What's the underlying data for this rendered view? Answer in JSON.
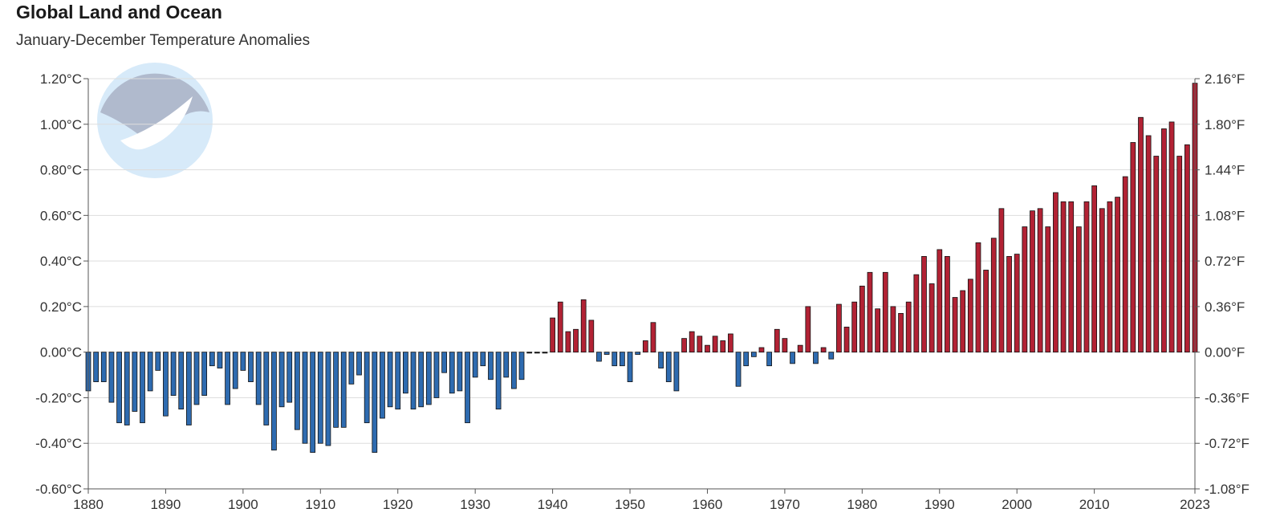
{
  "chart_data": {
    "type": "bar",
    "title": "Global Land and Ocean",
    "subtitle": "January-December Temperature Anomalies",
    "xlim": [
      1880,
      2023
    ],
    "ylim": [
      -0.6,
      1.2
    ],
    "y_ticks": [
      "-0.60°C",
      "-0.40°C",
      "-0.20°C",
      "0.00°C",
      "0.20°C",
      "0.40°C",
      "0.60°C",
      "0.80°C",
      "1.00°C",
      "1.20°C"
    ],
    "y2_ticks": [
      "-1.08°F",
      "-0.72°F",
      "-0.36°F",
      "0.00°F",
      "0.36°F",
      "0.72°F",
      "1.08°F",
      "1.44°F",
      "1.80°F",
      "2.16°F"
    ],
    "x_ticks": [
      "1880",
      "1890",
      "1900",
      "1910",
      "1920",
      "1930",
      "1940",
      "1950",
      "1960",
      "1970",
      "1980",
      "1990",
      "2000",
      "2010",
      "2023"
    ],
    "grid": true,
    "colors": {
      "positive": "#b22234",
      "negative": "#2e6bb0",
      "outline": "#111111",
      "grid": "#dddddd"
    },
    "x": [
      1880,
      1881,
      1882,
      1883,
      1884,
      1885,
      1886,
      1887,
      1888,
      1889,
      1890,
      1891,
      1892,
      1893,
      1894,
      1895,
      1896,
      1897,
      1898,
      1899,
      1900,
      1901,
      1902,
      1903,
      1904,
      1905,
      1906,
      1907,
      1908,
      1909,
      1910,
      1911,
      1912,
      1913,
      1914,
      1915,
      1916,
      1917,
      1918,
      1919,
      1920,
      1921,
      1922,
      1923,
      1924,
      1925,
      1926,
      1927,
      1928,
      1929,
      1930,
      1931,
      1932,
      1933,
      1934,
      1935,
      1936,
      1937,
      1938,
      1939,
      1940,
      1941,
      1942,
      1943,
      1944,
      1945,
      1946,
      1947,
      1948,
      1949,
      1950,
      1951,
      1952,
      1953,
      1954,
      1955,
      1956,
      1957,
      1958,
      1959,
      1960,
      1961,
      1962,
      1963,
      1964,
      1965,
      1966,
      1967,
      1968,
      1969,
      1970,
      1971,
      1972,
      1973,
      1974,
      1975,
      1976,
      1977,
      1978,
      1979,
      1980,
      1981,
      1982,
      1983,
      1984,
      1985,
      1986,
      1987,
      1988,
      1989,
      1990,
      1991,
      1992,
      1993,
      1994,
      1995,
      1996,
      1997,
      1998,
      1999,
      2000,
      2001,
      2002,
      2003,
      2004,
      2005,
      2006,
      2007,
      2008,
      2009,
      2010,
      2011,
      2012,
      2013,
      2014,
      2015,
      2016,
      2017,
      2018,
      2019,
      2020,
      2021,
      2022,
      2023
    ],
    "values": [
      -0.17,
      -0.13,
      -0.13,
      -0.22,
      -0.31,
      -0.32,
      -0.26,
      -0.31,
      -0.17,
      -0.08,
      -0.28,
      -0.19,
      -0.25,
      -0.32,
      -0.23,
      -0.19,
      -0.06,
      -0.07,
      -0.23,
      -0.16,
      -0.08,
      -0.13,
      -0.23,
      -0.32,
      -0.43,
      -0.24,
      -0.22,
      -0.34,
      -0.4,
      -0.44,
      -0.4,
      -0.41,
      -0.33,
      -0.33,
      -0.14,
      -0.1,
      -0.31,
      -0.44,
      -0.29,
      -0.24,
      -0.25,
      -0.18,
      -0.25,
      -0.24,
      -0.23,
      -0.2,
      -0.09,
      -0.18,
      -0.17,
      -0.31,
      -0.11,
      -0.06,
      -0.12,
      -0.25,
      -0.11,
      -0.16,
      -0.12,
      0.0,
      0.0,
      0.0,
      0.15,
      0.22,
      0.09,
      0.1,
      0.23,
      0.14,
      -0.04,
      -0.01,
      -0.06,
      -0.06,
      -0.13,
      -0.01,
      0.05,
      0.13,
      -0.07,
      -0.13,
      -0.17,
      0.06,
      0.09,
      0.07,
      0.03,
      0.07,
      0.05,
      0.08,
      -0.15,
      -0.06,
      -0.02,
      0.02,
      -0.06,
      0.1,
      0.06,
      -0.05,
      0.03,
      0.2,
      -0.05,
      0.02,
      -0.03,
      0.21,
      0.11,
      0.22,
      0.29,
      0.35,
      0.19,
      0.35,
      0.2,
      0.17,
      0.22,
      0.34,
      0.42,
      0.3,
      0.45,
      0.42,
      0.24,
      0.27,
      0.32,
      0.48,
      0.36,
      0.5,
      0.63,
      0.42,
      0.43,
      0.55,
      0.62,
      0.63,
      0.55,
      0.7,
      0.66,
      0.66,
      0.55,
      0.66,
      0.73,
      0.63,
      0.66,
      0.68,
      0.77,
      0.92,
      1.03,
      0.95,
      0.86,
      0.98,
      1.01,
      0.86,
      0.91,
      1.18
    ]
  }
}
